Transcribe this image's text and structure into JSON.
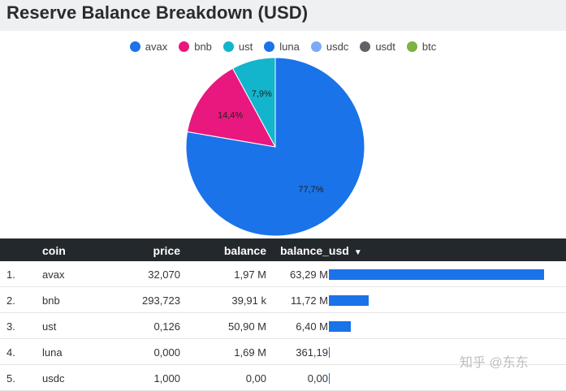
{
  "title": "Reserve Balance Breakdown (USD)",
  "legend": [
    {
      "label": "avax",
      "color": "#1a73e8"
    },
    {
      "label": "bnb",
      "color": "#e8187e"
    },
    {
      "label": "ust",
      "color": "#12b5cb"
    },
    {
      "label": "luna",
      "color": "#1a73e8"
    },
    {
      "label": "usdc",
      "color": "#7baaf7"
    },
    {
      "label": "usdt",
      "color": "#5f6368"
    },
    {
      "label": "btc",
      "color": "#7cb342"
    }
  ],
  "chart_data": {
    "type": "pie",
    "slices": [
      {
        "name": "avax",
        "value": 77.7,
        "label": "77,7%",
        "color": "#1a73e8"
      },
      {
        "name": "bnb",
        "value": 14.4,
        "label": "14,4%",
        "color": "#e8187e"
      },
      {
        "name": "ust",
        "value": 7.9,
        "label": "7,9%",
        "color": "#12b5cb"
      }
    ]
  },
  "table": {
    "headers": {
      "coin": "coin",
      "price": "price",
      "balance": "balance",
      "balance_usd": "balance_usd"
    },
    "sort_indicator": "▼",
    "rows": [
      {
        "index": "1.",
        "coin": "avax",
        "price": "32,070",
        "balance": "1,97 M",
        "balance_usd": "63,29 M",
        "bar_fraction": 1.0
      },
      {
        "index": "2.",
        "coin": "bnb",
        "price": "293,723",
        "balance": "39,91 k",
        "balance_usd": "11,72 M",
        "bar_fraction": 0.185
      },
      {
        "index": "3.",
        "coin": "ust",
        "price": "0,126",
        "balance": "50,90 M",
        "balance_usd": "6,40 M",
        "bar_fraction": 0.101
      },
      {
        "index": "4.",
        "coin": "luna",
        "price": "0,000",
        "balance": "1,69 M",
        "balance_usd": "361,19",
        "bar_fraction": 0.0
      },
      {
        "index": "5.",
        "coin": "usdc",
        "price": "1,000",
        "balance": "0,00",
        "balance_usd": "0,00",
        "bar_fraction": 0.0
      }
    ]
  },
  "watermark": "知乎 @东东"
}
